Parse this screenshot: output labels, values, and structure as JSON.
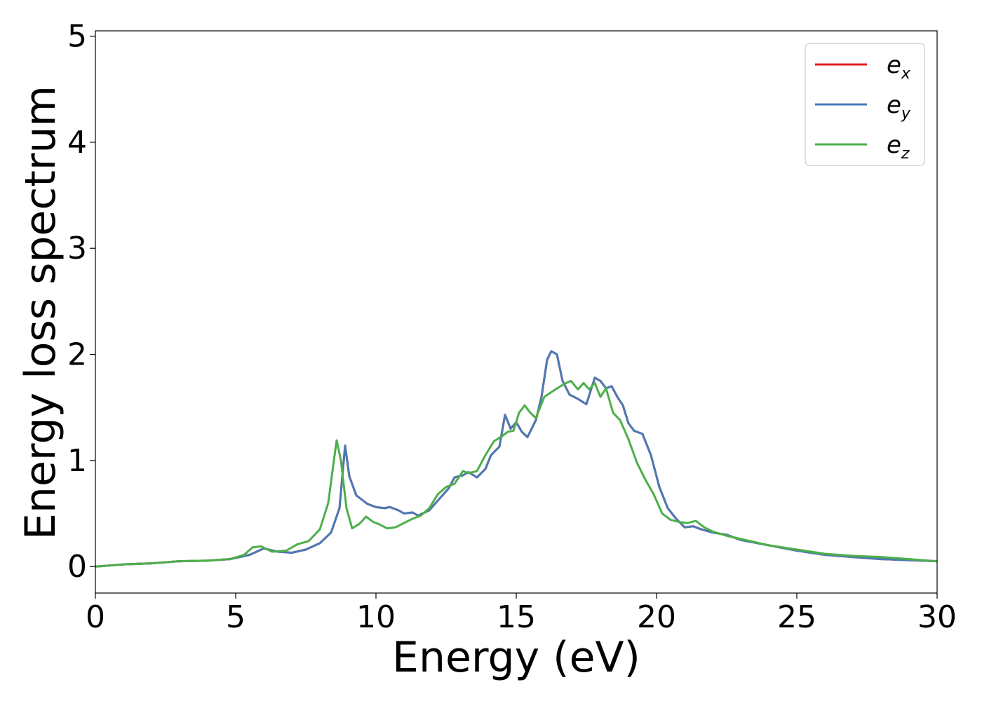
{
  "chart_data": {
    "type": "line",
    "title": "",
    "xlabel": "Energy (eV)",
    "ylabel": "Energy loss spectrum",
    "xlim": [
      0,
      30
    ],
    "ylim": [
      -0.25,
      5.05
    ],
    "xticks": [
      0,
      5,
      10,
      15,
      20,
      25,
      30
    ],
    "yticks": [
      0,
      1,
      2,
      3,
      4,
      5
    ],
    "grid": false,
    "legend_position": "top-right",
    "series": [
      {
        "name": "e_x",
        "label_base": "e",
        "label_sub": "x",
        "color": "#e41a1c",
        "points": [
          [
            0,
            0.0
          ],
          [
            1,
            0.02
          ],
          [
            2,
            0.03
          ],
          [
            3,
            0.05
          ],
          [
            4,
            0.055
          ],
          [
            4.8,
            0.07
          ],
          [
            5.5,
            0.11
          ],
          [
            6,
            0.17
          ],
          [
            6.5,
            0.14
          ],
          [
            7,
            0.13
          ],
          [
            7.5,
            0.16
          ],
          [
            8,
            0.22
          ],
          [
            8.4,
            0.32
          ],
          [
            8.7,
            0.55
          ],
          [
            8.9,
            1.14
          ],
          [
            9.05,
            0.85
          ],
          [
            9.3,
            0.67
          ],
          [
            9.7,
            0.59
          ],
          [
            10,
            0.56
          ],
          [
            10.3,
            0.55
          ],
          [
            10.5,
            0.56
          ],
          [
            10.8,
            0.53
          ],
          [
            11,
            0.5
          ],
          [
            11.3,
            0.51
          ],
          [
            11.5,
            0.48
          ],
          [
            11.9,
            0.53
          ],
          [
            12.3,
            0.65
          ],
          [
            12.6,
            0.74
          ],
          [
            12.8,
            0.84
          ],
          [
            13.1,
            0.86
          ],
          [
            13.3,
            0.89
          ],
          [
            13.6,
            0.84
          ],
          [
            13.9,
            0.92
          ],
          [
            14.1,
            1.05
          ],
          [
            14.4,
            1.13
          ],
          [
            14.6,
            1.43
          ],
          [
            14.8,
            1.3
          ],
          [
            15,
            1.36
          ],
          [
            15.2,
            1.27
          ],
          [
            15.4,
            1.22
          ],
          [
            15.7,
            1.38
          ],
          [
            15.9,
            1.6
          ],
          [
            16.1,
            1.95
          ],
          [
            16.25,
            2.03
          ],
          [
            16.45,
            2.0
          ],
          [
            16.65,
            1.75
          ],
          [
            16.9,
            1.62
          ],
          [
            17.2,
            1.58
          ],
          [
            17.5,
            1.53
          ],
          [
            17.8,
            1.78
          ],
          [
            18,
            1.75
          ],
          [
            18.2,
            1.68
          ],
          [
            18.4,
            1.7
          ],
          [
            18.6,
            1.6
          ],
          [
            18.8,
            1.52
          ],
          [
            19,
            1.35
          ],
          [
            19.2,
            1.28
          ],
          [
            19.5,
            1.25
          ],
          [
            19.8,
            1.05
          ],
          [
            20.1,
            0.75
          ],
          [
            20.4,
            0.55
          ],
          [
            20.7,
            0.45
          ],
          [
            21,
            0.37
          ],
          [
            21.3,
            0.38
          ],
          [
            21.6,
            0.35
          ],
          [
            22,
            0.32
          ],
          [
            22.5,
            0.3
          ],
          [
            23,
            0.25
          ],
          [
            24,
            0.2
          ],
          [
            25,
            0.15
          ],
          [
            26,
            0.11
          ],
          [
            27,
            0.09
          ],
          [
            28,
            0.07
          ],
          [
            29,
            0.06
          ],
          [
            30,
            0.05
          ]
        ]
      },
      {
        "name": "e_y",
        "label_base": "e",
        "label_sub": "y",
        "color": "#4a7ab5",
        "points": [
          [
            0,
            0.0
          ],
          [
            1,
            0.02
          ],
          [
            2,
            0.03
          ],
          [
            3,
            0.05
          ],
          [
            4,
            0.055
          ],
          [
            4.8,
            0.07
          ],
          [
            5.5,
            0.11
          ],
          [
            6,
            0.17
          ],
          [
            6.5,
            0.14
          ],
          [
            7,
            0.13
          ],
          [
            7.5,
            0.16
          ],
          [
            8,
            0.22
          ],
          [
            8.4,
            0.32
          ],
          [
            8.7,
            0.55
          ],
          [
            8.9,
            1.14
          ],
          [
            9.05,
            0.85
          ],
          [
            9.3,
            0.67
          ],
          [
            9.7,
            0.59
          ],
          [
            10,
            0.56
          ],
          [
            10.3,
            0.55
          ],
          [
            10.5,
            0.56
          ],
          [
            10.8,
            0.53
          ],
          [
            11,
            0.5
          ],
          [
            11.3,
            0.51
          ],
          [
            11.5,
            0.48
          ],
          [
            11.9,
            0.53
          ],
          [
            12.3,
            0.65
          ],
          [
            12.6,
            0.74
          ],
          [
            12.8,
            0.84
          ],
          [
            13.1,
            0.86
          ],
          [
            13.3,
            0.89
          ],
          [
            13.6,
            0.84
          ],
          [
            13.9,
            0.92
          ],
          [
            14.1,
            1.05
          ],
          [
            14.4,
            1.13
          ],
          [
            14.6,
            1.43
          ],
          [
            14.8,
            1.3
          ],
          [
            15,
            1.36
          ],
          [
            15.2,
            1.27
          ],
          [
            15.4,
            1.22
          ],
          [
            15.7,
            1.38
          ],
          [
            15.9,
            1.6
          ],
          [
            16.1,
            1.95
          ],
          [
            16.25,
            2.03
          ],
          [
            16.45,
            2.0
          ],
          [
            16.65,
            1.75
          ],
          [
            16.9,
            1.62
          ],
          [
            17.2,
            1.58
          ],
          [
            17.5,
            1.53
          ],
          [
            17.8,
            1.78
          ],
          [
            18,
            1.75
          ],
          [
            18.2,
            1.68
          ],
          [
            18.4,
            1.7
          ],
          [
            18.6,
            1.6
          ],
          [
            18.8,
            1.52
          ],
          [
            19,
            1.35
          ],
          [
            19.2,
            1.28
          ],
          [
            19.5,
            1.25
          ],
          [
            19.8,
            1.05
          ],
          [
            20.1,
            0.75
          ],
          [
            20.4,
            0.55
          ],
          [
            20.7,
            0.45
          ],
          [
            21,
            0.37
          ],
          [
            21.3,
            0.38
          ],
          [
            21.6,
            0.35
          ],
          [
            22,
            0.32
          ],
          [
            22.5,
            0.3
          ],
          [
            23,
            0.25
          ],
          [
            24,
            0.2
          ],
          [
            25,
            0.15
          ],
          [
            26,
            0.11
          ],
          [
            27,
            0.09
          ],
          [
            28,
            0.07
          ],
          [
            29,
            0.06
          ],
          [
            30,
            0.05
          ]
        ]
      },
      {
        "name": "e_z",
        "label_base": "e",
        "label_sub": "z",
        "color": "#4daf4a",
        "points": [
          [
            0,
            0.0
          ],
          [
            1,
            0.02
          ],
          [
            2,
            0.03
          ],
          [
            3,
            0.05
          ],
          [
            4,
            0.055
          ],
          [
            4.8,
            0.07
          ],
          [
            5.3,
            0.11
          ],
          [
            5.6,
            0.18
          ],
          [
            5.9,
            0.19
          ],
          [
            6.3,
            0.14
          ],
          [
            6.8,
            0.15
          ],
          [
            7.2,
            0.21
          ],
          [
            7.6,
            0.24
          ],
          [
            8,
            0.35
          ],
          [
            8.3,
            0.6
          ],
          [
            8.5,
            1.0
          ],
          [
            8.6,
            1.19
          ],
          [
            8.75,
            1.0
          ],
          [
            8.95,
            0.55
          ],
          [
            9.15,
            0.36
          ],
          [
            9.4,
            0.4
          ],
          [
            9.65,
            0.47
          ],
          [
            9.9,
            0.42
          ],
          [
            10.1,
            0.4
          ],
          [
            10.4,
            0.36
          ],
          [
            10.7,
            0.37
          ],
          [
            11,
            0.41
          ],
          [
            11.3,
            0.45
          ],
          [
            11.6,
            0.48
          ],
          [
            11.9,
            0.55
          ],
          [
            12.2,
            0.68
          ],
          [
            12.5,
            0.75
          ],
          [
            12.8,
            0.78
          ],
          [
            13.1,
            0.9
          ],
          [
            13.3,
            0.88
          ],
          [
            13.6,
            0.9
          ],
          [
            13.9,
            1.05
          ],
          [
            14.2,
            1.18
          ],
          [
            14.5,
            1.23
          ],
          [
            14.7,
            1.27
          ],
          [
            14.9,
            1.28
          ],
          [
            15.1,
            1.45
          ],
          [
            15.3,
            1.52
          ],
          [
            15.5,
            1.45
          ],
          [
            15.7,
            1.4
          ],
          [
            16,
            1.6
          ],
          [
            16.4,
            1.67
          ],
          [
            16.7,
            1.72
          ],
          [
            16.95,
            1.75
          ],
          [
            17.2,
            1.67
          ],
          [
            17.4,
            1.73
          ],
          [
            17.6,
            1.67
          ],
          [
            17.8,
            1.73
          ],
          [
            18,
            1.6
          ],
          [
            18.2,
            1.68
          ],
          [
            18.45,
            1.45
          ],
          [
            18.7,
            1.38
          ],
          [
            19,
            1.2
          ],
          [
            19.3,
            0.98
          ],
          [
            19.6,
            0.82
          ],
          [
            19.9,
            0.68
          ],
          [
            20.2,
            0.5
          ],
          [
            20.5,
            0.44
          ],
          [
            20.8,
            0.42
          ],
          [
            21.1,
            0.41
          ],
          [
            21.4,
            0.43
          ],
          [
            21.7,
            0.37
          ],
          [
            22,
            0.33
          ],
          [
            22.5,
            0.29
          ],
          [
            23,
            0.26
          ],
          [
            24,
            0.2
          ],
          [
            25,
            0.16
          ],
          [
            26,
            0.12
          ],
          [
            27,
            0.1
          ],
          [
            28,
            0.09
          ],
          [
            29,
            0.07
          ],
          [
            30,
            0.05
          ]
        ]
      }
    ]
  }
}
